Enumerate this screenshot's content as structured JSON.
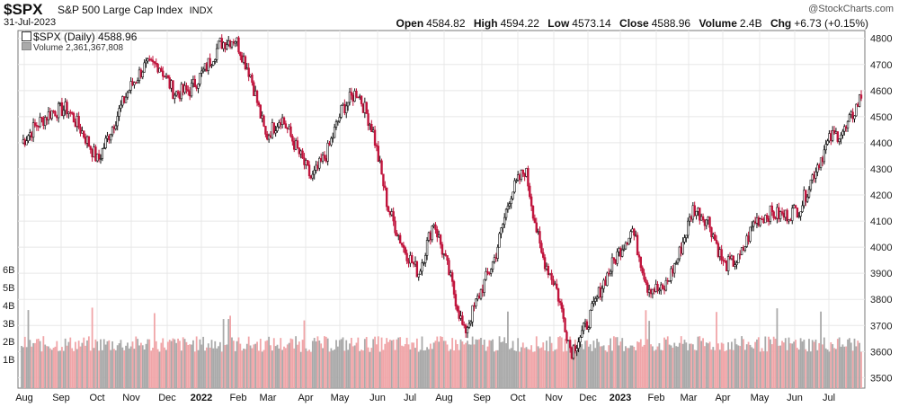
{
  "header": {
    "symbol": "$SPX",
    "description": "S&P 500 Large Cap Index",
    "exchange": "INDX",
    "date": "31-Jul-2023",
    "watermark": "@StockCharts.com",
    "stats": [
      {
        "label": "Open",
        "value": "4584.82"
      },
      {
        "label": "High",
        "value": "4594.22"
      },
      {
        "label": "Low",
        "value": "4573.14"
      },
      {
        "label": "Close",
        "value": "4588.96"
      },
      {
        "label": "Volume",
        "value": "2.4B"
      },
      {
        "label": "Chg",
        "value": "+6.73 (+0.15%)"
      }
    ]
  },
  "legend": {
    "price": "$SPX (Daily) 4588.96",
    "volume": "Volume 2,361,367,808"
  },
  "chart_data": {
    "type": "candlestick",
    "grid": true,
    "price_axis": {
      "side": "right",
      "ylim": [
        3460,
        4830
      ],
      "ticks": [
        3500,
        3600,
        3700,
        3800,
        3900,
        4000,
        4100,
        4200,
        4300,
        4400,
        4500,
        4600,
        4700,
        4800
      ]
    },
    "volume_axis": {
      "side": "left",
      "ticks": [
        "1B",
        "2B",
        "3B",
        "4B",
        "5B",
        "6B"
      ],
      "tick_values": [
        1,
        2,
        3,
        4,
        5,
        6
      ]
    },
    "months": [
      {
        "label": "Aug",
        "bold": false
      },
      {
        "label": "Sep",
        "bold": false
      },
      {
        "label": "Oct",
        "bold": false
      },
      {
        "label": "Nov",
        "bold": false
      },
      {
        "label": "Dec",
        "bold": false
      },
      {
        "label": "2022",
        "bold": true
      },
      {
        "label": "Feb",
        "bold": false
      },
      {
        "label": "Mar",
        "bold": false
      },
      {
        "label": "Apr",
        "bold": false
      },
      {
        "label": "May",
        "bold": false
      },
      {
        "label": "Jun",
        "bold": false
      },
      {
        "label": "Jul",
        "bold": false
      },
      {
        "label": "Aug",
        "bold": false
      },
      {
        "label": "Sep",
        "bold": false
      },
      {
        "label": "Oct",
        "bold": false
      },
      {
        "label": "Nov",
        "bold": false
      },
      {
        "label": "Dec",
        "bold": false
      },
      {
        "label": "2023",
        "bold": true
      },
      {
        "label": "Feb",
        "bold": false
      },
      {
        "label": "Mar",
        "bold": false
      },
      {
        "label": "Apr",
        "bold": false
      },
      {
        "label": "May",
        "bold": false
      },
      {
        "label": "Jun",
        "bold": false
      },
      {
        "label": "Jul",
        "bold": false
      }
    ],
    "approx_close_path": [
      [
        "Aug 2021",
        4400
      ],
      [
        "Aug 2021",
        4470
      ],
      [
        "Aug 2021",
        4520
      ],
      [
        "Sep 2021",
        4530
      ],
      [
        "Sep 2021",
        4440
      ],
      [
        "Oct 2021",
        4330
      ],
      [
        "Oct 2021",
        4470
      ],
      [
        "Oct 2021",
        4600
      ],
      [
        "Nov 2021",
        4690
      ],
      [
        "Nov 2021",
        4700
      ],
      [
        "Nov 2021",
        4590
      ],
      [
        "Dec 2021",
        4600
      ],
      [
        "Dec 2021",
        4680
      ],
      [
        "Dec 2021",
        4780
      ],
      [
        "Jan 2022",
        4800
      ],
      [
        "Jan 2022",
        4660
      ],
      [
        "Jan 2022",
        4420
      ],
      [
        "Feb 2022",
        4500
      ],
      [
        "Feb 2022",
        4380
      ],
      [
        "Mar 2022",
        4260
      ],
      [
        "Mar 2022",
        4360
      ],
      [
        "Mar 2022",
        4530
      ],
      [
        "Apr 2022",
        4600
      ],
      [
        "Apr 2022",
        4450
      ],
      [
        "May 2022",
        4150
      ],
      [
        "May 2022",
        4000
      ],
      [
        "May 2022",
        3900
      ],
      [
        "Jun 2022",
        4100
      ],
      [
        "Jun 2022",
        3900
      ],
      [
        "Jun 2022",
        3670
      ],
      [
        "Jul 2022",
        3820
      ],
      [
        "Jul 2022",
        3960
      ],
      [
        "Aug 2022",
        4200
      ],
      [
        "Aug 2022",
        4300
      ],
      [
        "Sep 2022",
        3980
      ],
      [
        "Sep 2022",
        3850
      ],
      [
        "Oct 2022",
        3600
      ],
      [
        "Oct 2022",
        3700
      ],
      [
        "Nov 2022",
        3850
      ],
      [
        "Nov 2022",
        3970
      ],
      [
        "Dec 2022",
        4070
      ],
      [
        "Dec 2022",
        3850
      ],
      [
        "Jan 2023",
        3830
      ],
      [
        "Jan 2023",
        3960
      ],
      [
        "Feb 2023",
        4150
      ],
      [
        "Feb 2023",
        4100
      ],
      [
        "Mar 2023",
        3930
      ],
      [
        "Mar 2023",
        3950
      ],
      [
        "Apr 2023",
        4100
      ],
      [
        "Apr 2023",
        4130
      ],
      [
        "May 2023",
        4120
      ],
      [
        "May 2023",
        4150
      ],
      [
        "Jun 2023",
        4300
      ],
      [
        "Jun 2023",
        4420
      ],
      [
        "Jul 2023",
        4450
      ],
      [
        "Jul 2023",
        4580
      ]
    ],
    "colors": {
      "up": "#111111",
      "down": "#c0143c",
      "vol_up": "#a9a9a9",
      "vol_down": "#f0a5a8",
      "grid": "#e8e8e8"
    }
  }
}
